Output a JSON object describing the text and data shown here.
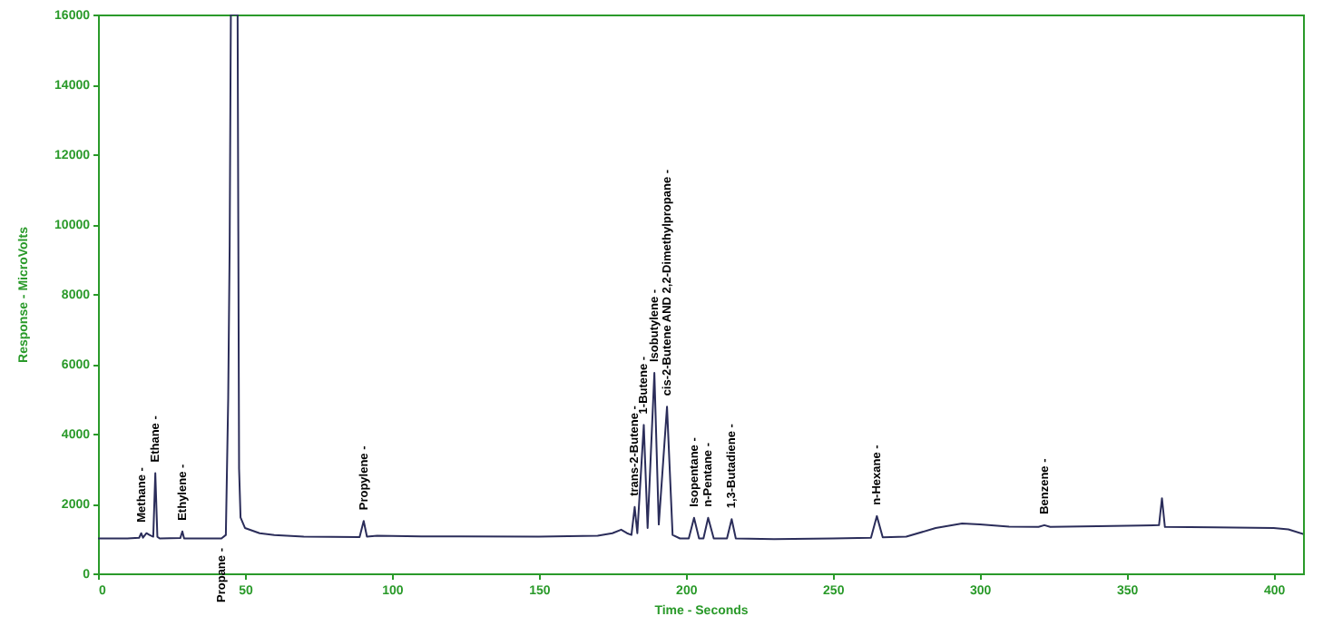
{
  "chart_data": {
    "type": "line",
    "xlabel": "Time - Seconds",
    "ylabel": "Response - MicroVolts",
    "color": "#2b2d5a",
    "x": [
      0,
      10,
      14,
      14.7,
      15.3,
      16.5,
      17.5,
      18.8,
      19.5,
      20.2,
      21,
      28,
      28.7,
      29.3,
      42,
      43.5,
      44.3,
      44.8,
      45.2,
      47.5,
      48,
      48.5,
      50,
      55,
      60,
      70,
      89,
      90.4,
      91.5,
      95,
      110,
      150,
      170,
      175,
      178,
      180,
      181.5,
      182.6,
      183.5,
      185.7,
      187,
      189.3,
      190.8,
      193.6,
      195.5,
      198,
      201,
      202.8,
      204.5,
      206,
      207.6,
      209.5,
      214,
      215.6,
      217,
      230,
      250,
      263,
      265,
      267,
      275,
      285,
      294,
      300,
      310,
      320,
      322,
      324,
      340,
      355,
      361,
      362,
      363,
      380,
      400,
      405,
      410
    ],
    "values": [
      1000,
      1000,
      1020,
      1150,
      1020,
      1150,
      1100,
      1050,
      2870,
      1050,
      1000,
      1010,
      1200,
      1000,
      1000,
      1100,
      5000,
      9400,
      16000,
      16000,
      3000,
      1600,
      1300,
      1150,
      1100,
      1050,
      1040,
      1500,
      1050,
      1080,
      1060,
      1050,
      1080,
      1150,
      1250,
      1150,
      1100,
      1900,
      1150,
      4250,
      1300,
      5740,
      1400,
      4770,
      1100,
      1000,
      1000,
      1590,
      1000,
      1000,
      1590,
      1000,
      1000,
      1550,
      1000,
      980,
      1000,
      1020,
      1640,
      1030,
      1050,
      1300,
      1430,
      1400,
      1340,
      1330,
      1380,
      1330,
      1350,
      1370,
      1380,
      2150,
      1330,
      1320,
      1300,
      1260,
      1130
    ],
    "xlim": [
      0,
      410
    ],
    "ylim": [
      0,
      16000
    ],
    "xticks": [
      0,
      50,
      100,
      150,
      200,
      250,
      300,
      350,
      400
    ],
    "yticks": [
      0,
      2000,
      4000,
      6000,
      8000,
      10000,
      12000,
      14000,
      16000
    ],
    "annotations": [
      {
        "text": "Methane -",
        "x": 14.7,
        "y": 1150
      },
      {
        "text": "Ethane -",
        "x": 19.5,
        "y": 2870
      },
      {
        "text": "Ethylene -",
        "x": 28.7,
        "y": 1200
      },
      "Propane -",
      {
        "text": "Propylene -",
        "x": 90.4,
        "y": 1500
      },
      {
        "text": "trans-2-Butene -",
        "x": 182.6,
        "y": 1900
      },
      {
        "text": "1-Butene -",
        "x": 185.7,
        "y": 4250
      },
      {
        "text": "Isobutylene -",
        "x": 189.3,
        "y": 5740
      },
      {
        "text": "cis-2-Butene AND 2,2-Dimethylpropane -",
        "x": 193.6,
        "y": 4770
      },
      {
        "text": "Isopentane -",
        "x": 202.8,
        "y": 1590
      },
      {
        "text": "n-Pentane -",
        "x": 207.6,
        "y": 1590
      },
      {
        "text": "1,3-Butadiene -",
        "x": 215.6,
        "y": 1550
      },
      {
        "text": "n-Hexane -",
        "x": 265,
        "y": 1640
      },
      {
        "text": "Benzene -",
        "x": 322,
        "y": 1380
      }
    ]
  }
}
